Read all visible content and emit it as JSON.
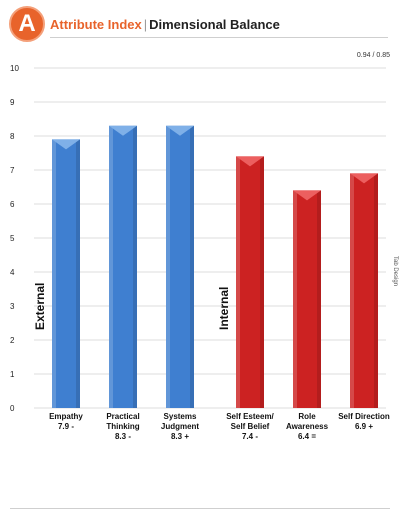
{
  "header": {
    "logo_letter": "A",
    "title": "Attribute Index",
    "separator": "|",
    "subtitle": "Dimensional Balance",
    "ratio": "0.94 / 0.85",
    "side_text": "Tab Design"
  },
  "chart_data": {
    "type": "bar",
    "ylim": [
      0,
      10
    ],
    "yticks": [
      0,
      1,
      2,
      3,
      4,
      5,
      6,
      7,
      8,
      9,
      10
    ],
    "grid": true,
    "groups": [
      {
        "name": "External",
        "color": "#3f7fd0",
        "cap_color": "#7fb0e8"
      },
      {
        "name": "Internal",
        "color": "#cc2222",
        "cap_color": "#ec5f5f"
      }
    ],
    "bars": [
      {
        "label": [
          "Empathy"
        ],
        "value": 7.9,
        "value_label": "7.9 -",
        "group": 0
      },
      {
        "label": [
          "Practical",
          "Thinking"
        ],
        "value": 8.3,
        "value_label": "8.3 -",
        "group": 0
      },
      {
        "label": [
          "Systems",
          "Judgment"
        ],
        "value": 8.3,
        "value_label": "8.3 +",
        "group": 0
      },
      {
        "label": [
          "Self Esteem/",
          "Self Belief"
        ],
        "value": 7.4,
        "value_label": "7.4 -",
        "group": 1
      },
      {
        "label": [
          "Role",
          "Awareness"
        ],
        "value": 6.4,
        "value_label": "6.4 =",
        "group": 1
      },
      {
        "label": [
          "Self Direction"
        ],
        "value": 6.9,
        "value_label": "6.9 +",
        "group": 1
      }
    ]
  }
}
